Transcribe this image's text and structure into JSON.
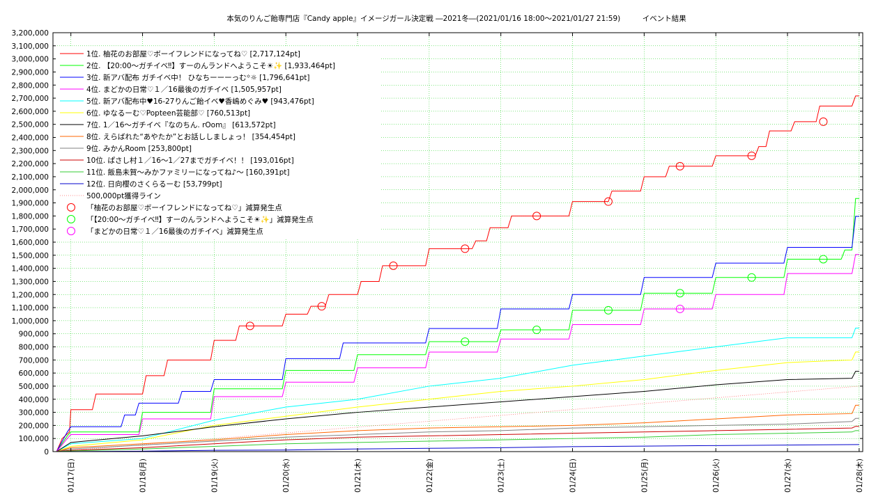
{
  "chart_data": {
    "type": "line",
    "title": "本気のりんご飴専門店『Candy apple』イメージガール決定戦 ―2021冬―(2021/01/16 18:00〜2021/01/27 21:59)　　　イベント結果",
    "xlabel": "",
    "ylabel": "",
    "x_ticks": [
      "01/17(日)",
      "01/18(月)",
      "01/19(火)",
      "01/20(水)",
      "01/21(木)",
      "01/22(金)",
      "01/23(土)",
      "01/24(日)",
      "01/25(月)",
      "01/26(火)",
      "01/27(水)",
      "01/28(木)"
    ],
    "xlim": [
      -0.25,
      11.05
    ],
    "ylim": [
      0,
      3200000
    ],
    "y_tick_step": 100000,
    "y_ticks": [
      "0",
      "100,000",
      "200,000",
      "300,000",
      "400,000",
      "500,000",
      "600,000",
      "700,000",
      "800,000",
      "900,000",
      "1,000,000",
      "1,100,000",
      "1,200,000",
      "1,300,000",
      "1,400,000",
      "1,500,000",
      "1,600,000",
      "1,700,000",
      "1,800,000",
      "1,900,000",
      "2,000,000",
      "2,100,000",
      "2,200,000",
      "2,300,000",
      "2,400,000",
      "2,500,000",
      "2,600,000",
      "2,700,000",
      "2,800,000",
      "2,900,000",
      "3,000,000",
      "3,100,000",
      "3,200,000"
    ],
    "grid": true,
    "legend_position": "top-left",
    "series": [
      {
        "name": "1位. 柚花のお部屋♡ボーイフレンドになってね♡ [2,717,124pt]",
        "color": "#ff0000",
        "points": [
          [
            -0.2,
            0
          ],
          [
            -0.12,
            100000
          ],
          [
            -0.02,
            150000
          ],
          [
            0,
            320000
          ],
          [
            0.3,
            320000
          ],
          [
            0.35,
            440000
          ],
          [
            1,
            440000
          ],
          [
            1.05,
            580000
          ],
          [
            1.3,
            580000
          ],
          [
            1.35,
            700000
          ],
          [
            1.95,
            700000
          ],
          [
            2,
            850000
          ],
          [
            2.3,
            850000
          ],
          [
            2.35,
            960000
          ],
          [
            2.95,
            960000
          ],
          [
            3,
            1050000
          ],
          [
            3.3,
            1050000
          ],
          [
            3.35,
            1110000
          ],
          [
            3.55,
            1110000
          ],
          [
            3.6,
            1200000
          ],
          [
            4,
            1200000
          ],
          [
            4.05,
            1300000
          ],
          [
            4.3,
            1300000
          ],
          [
            4.35,
            1420000
          ],
          [
            4.95,
            1420000
          ],
          [
            5,
            1550000
          ],
          [
            5.6,
            1550000
          ],
          [
            5.65,
            1610000
          ],
          [
            5.8,
            1610000
          ],
          [
            5.85,
            1710000
          ],
          [
            6.1,
            1710000
          ],
          [
            6.15,
            1800000
          ],
          [
            6.95,
            1800000
          ],
          [
            7,
            1910000
          ],
          [
            7.5,
            1910000
          ],
          [
            7.55,
            1990000
          ],
          [
            7.95,
            1990000
          ],
          [
            8,
            2100000
          ],
          [
            8.3,
            2100000
          ],
          [
            8.35,
            2180000
          ],
          [
            8.95,
            2180000
          ],
          [
            9,
            2260000
          ],
          [
            9.55,
            2260000
          ],
          [
            9.6,
            2330000
          ],
          [
            9.7,
            2330000
          ],
          [
            9.75,
            2450000
          ],
          [
            10.05,
            2450000
          ],
          [
            10.1,
            2520000
          ],
          [
            10.4,
            2520000
          ],
          [
            10.45,
            2640000
          ],
          [
            10.9,
            2640000
          ],
          [
            10.95,
            2717124
          ],
          [
            11,
            2717124
          ]
        ]
      },
      {
        "name": "2位. 【20:00〜ガチイベ‼︎】すーのんランドへようこそ☀︎✨ [1,933,464pt]",
        "color": "#00ff00",
        "points": [
          [
            -0.2,
            0
          ],
          [
            -0.05,
            120000
          ],
          [
            0,
            150000
          ],
          [
            0.95,
            150000
          ],
          [
            1,
            300000
          ],
          [
            1.95,
            300000
          ],
          [
            2,
            480000
          ],
          [
            2.95,
            480000
          ],
          [
            3,
            620000
          ],
          [
            3.95,
            620000
          ],
          [
            4,
            740000
          ],
          [
            4.95,
            740000
          ],
          [
            5,
            840000
          ],
          [
            5.95,
            840000
          ],
          [
            6,
            930000
          ],
          [
            6.95,
            930000
          ],
          [
            7,
            1080000
          ],
          [
            7.95,
            1080000
          ],
          [
            8,
            1210000
          ],
          [
            8.95,
            1210000
          ],
          [
            9,
            1330000
          ],
          [
            9.95,
            1330000
          ],
          [
            10,
            1470000
          ],
          [
            10.75,
            1470000
          ],
          [
            10.8,
            1540000
          ],
          [
            10.9,
            1540000
          ],
          [
            10.95,
            1933464
          ],
          [
            11,
            1933464
          ]
        ]
      },
      {
        "name": "3位. 新アバ配布 ガチイベ中！ ひなちーーーっむ꙳☼ [1,796,641pt]",
        "color": "#0000ff",
        "points": [
          [
            -0.2,
            0
          ],
          [
            -0.05,
            150000
          ],
          [
            0,
            190000
          ],
          [
            0.7,
            190000
          ],
          [
            0.75,
            280000
          ],
          [
            0.9,
            280000
          ],
          [
            0.95,
            370000
          ],
          [
            1.5,
            370000
          ],
          [
            1.55,
            460000
          ],
          [
            1.95,
            460000
          ],
          [
            2,
            550000
          ],
          [
            2.95,
            550000
          ],
          [
            3,
            710000
          ],
          [
            3.75,
            710000
          ],
          [
            3.8,
            830000
          ],
          [
            4.95,
            830000
          ],
          [
            5,
            940000
          ],
          [
            5.95,
            940000
          ],
          [
            6,
            1090000
          ],
          [
            6.95,
            1090000
          ],
          [
            7,
            1200000
          ],
          [
            7.95,
            1200000
          ],
          [
            8,
            1330000
          ],
          [
            8.95,
            1330000
          ],
          [
            9,
            1440000
          ],
          [
            9.95,
            1440000
          ],
          [
            10,
            1560000
          ],
          [
            10.9,
            1560000
          ],
          [
            10.95,
            1796641
          ],
          [
            11,
            1796641
          ]
        ]
      },
      {
        "name": "4位. まどかの日常♡１／16最後のガチイベ [1,505,957pt]",
        "color": "#ff00ff",
        "points": [
          [
            -0.2,
            0
          ],
          [
            -0.05,
            100000
          ],
          [
            0,
            130000
          ],
          [
            0.95,
            130000
          ],
          [
            1,
            250000
          ],
          [
            1.95,
            250000
          ],
          [
            2,
            420000
          ],
          [
            2.95,
            420000
          ],
          [
            3,
            530000
          ],
          [
            3.95,
            530000
          ],
          [
            4,
            640000
          ],
          [
            4.95,
            640000
          ],
          [
            5,
            760000
          ],
          [
            5.95,
            760000
          ],
          [
            6,
            860000
          ],
          [
            6.95,
            860000
          ],
          [
            7,
            970000
          ],
          [
            7.95,
            970000
          ],
          [
            8,
            1090000
          ],
          [
            8.95,
            1090000
          ],
          [
            9,
            1200000
          ],
          [
            9.95,
            1200000
          ],
          [
            10,
            1360000
          ],
          [
            10.9,
            1360000
          ],
          [
            10.95,
            1505957
          ],
          [
            11,
            1505957
          ]
        ]
      },
      {
        "name": "5位. 新アバ配布中♥16-27りんご飴イベ♥香嶋めぐみ♥ [943,476pt]",
        "color": "#00ffff",
        "points": [
          [
            -0.2,
            0
          ],
          [
            0,
            60000
          ],
          [
            1,
            100000
          ],
          [
            2,
            240000
          ],
          [
            3,
            340000
          ],
          [
            4,
            400000
          ],
          [
            5,
            500000
          ],
          [
            6,
            560000
          ],
          [
            7,
            660000
          ],
          [
            8,
            730000
          ],
          [
            9,
            800000
          ],
          [
            10,
            870000
          ],
          [
            10.9,
            870000
          ],
          [
            10.95,
            943476
          ],
          [
            11,
            943476
          ]
        ]
      },
      {
        "name": "6位. ゆなるーむ♡Popteen芸能部♡ [760,513pt]",
        "color": "#ffff00",
        "points": [
          [
            -0.2,
            0
          ],
          [
            0,
            40000
          ],
          [
            1,
            90000
          ],
          [
            2,
            200000
          ],
          [
            3,
            270000
          ],
          [
            4,
            340000
          ],
          [
            5,
            400000
          ],
          [
            6,
            460000
          ],
          [
            7,
            500000
          ],
          [
            8,
            550000
          ],
          [
            9,
            620000
          ],
          [
            10,
            680000
          ],
          [
            10.9,
            700000
          ],
          [
            10.95,
            760513
          ],
          [
            11,
            760513
          ]
        ]
      },
      {
        "name": "7位. 1／16〜ガチイベ『なのちん. rOom』 [613,572pt]",
        "color": "#000000",
        "points": [
          [
            -0.2,
            0
          ],
          [
            0,
            70000
          ],
          [
            1,
            120000
          ],
          [
            2,
            190000
          ],
          [
            3,
            250000
          ],
          [
            4,
            300000
          ],
          [
            5,
            340000
          ],
          [
            6,
            380000
          ],
          [
            7,
            420000
          ],
          [
            8,
            460000
          ],
          [
            9,
            510000
          ],
          [
            10,
            550000
          ],
          [
            10.9,
            560000
          ],
          [
            10.95,
            613572
          ],
          [
            11,
            613572
          ]
        ]
      },
      {
        "name": "8位. えらばれた“あやたか”とお話ししましょっ！ [354,454pt]",
        "color": "#ff6600",
        "points": [
          [
            -0.2,
            0
          ],
          [
            0,
            30000
          ],
          [
            1,
            60000
          ],
          [
            2,
            90000
          ],
          [
            3,
            130000
          ],
          [
            4,
            160000
          ],
          [
            5,
            180000
          ],
          [
            6,
            190000
          ],
          [
            7,
            200000
          ],
          [
            8,
            220000
          ],
          [
            9,
            250000
          ],
          [
            10,
            280000
          ],
          [
            10.9,
            290000
          ],
          [
            10.95,
            354454
          ],
          [
            11,
            354454
          ]
        ]
      },
      {
        "name": "9位. みかんRoom [253,800pt]",
        "color": "#808080",
        "points": [
          [
            -0.2,
            0
          ],
          [
            0,
            20000
          ],
          [
            1,
            50000
          ],
          [
            2,
            80000
          ],
          [
            3,
            110000
          ],
          [
            4,
            130000
          ],
          [
            5,
            150000
          ],
          [
            6,
            160000
          ],
          [
            7,
            180000
          ],
          [
            8,
            190000
          ],
          [
            9,
            200000
          ],
          [
            10,
            210000
          ],
          [
            10.9,
            230000
          ],
          [
            10.95,
            253800
          ],
          [
            11,
            253800
          ]
        ]
      },
      {
        "name": "10位. ぱさし村１／16〜1／27までガチイベ！！ [193,016pt]",
        "color": "#cc0000",
        "points": [
          [
            -0.2,
            0
          ],
          [
            0,
            10000
          ],
          [
            1,
            30000
          ],
          [
            2,
            60000
          ],
          [
            3,
            90000
          ],
          [
            4,
            110000
          ],
          [
            5,
            120000
          ],
          [
            6,
            130000
          ],
          [
            7,
            140000
          ],
          [
            8,
            150000
          ],
          [
            9,
            160000
          ],
          [
            10,
            170000
          ],
          [
            10.9,
            180000
          ],
          [
            10.95,
            193016
          ],
          [
            11,
            193016
          ]
        ]
      },
      {
        "name": "11位. 飯島未賀〜みかファミリーになってね♪〜 [160,391pt]",
        "color": "#33cc33",
        "points": [
          [
            -0.2,
            0
          ],
          [
            0,
            5000
          ],
          [
            1,
            20000
          ],
          [
            2,
            40000
          ],
          [
            3,
            60000
          ],
          [
            4,
            70000
          ],
          [
            5,
            80000
          ],
          [
            6,
            90000
          ],
          [
            7,
            100000
          ],
          [
            8,
            110000
          ],
          [
            9,
            130000
          ],
          [
            10,
            140000
          ],
          [
            10.9,
            150000
          ],
          [
            10.95,
            160391
          ],
          [
            11,
            160391
          ]
        ]
      },
      {
        "name": "12位. 日向櫻のさくらるーむ [53,799pt]",
        "color": "#0000cc",
        "points": [
          [
            -0.2,
            0
          ],
          [
            1,
            3000
          ],
          [
            2,
            10000
          ],
          [
            3,
            12000
          ],
          [
            4,
            20000
          ],
          [
            5,
            25000
          ],
          [
            6,
            30000
          ],
          [
            7,
            38000
          ],
          [
            8,
            42000
          ],
          [
            9,
            46000
          ],
          [
            10,
            50000
          ],
          [
            11,
            53799
          ]
        ]
      }
    ],
    "reference_line": {
      "name": "500,000pt獲得ライン",
      "color": "#ff6666",
      "points": [
        [
          -0.2,
          0
        ],
        [
          11,
          500000
        ]
      ]
    },
    "markers": [
      {
        "name": "「柚花のお部屋♡ボーイフレンドになってね♡」減算発生点",
        "color": "#ff0000",
        "points": [
          [
            2.5,
            960000
          ],
          [
            3.5,
            1110000
          ],
          [
            4.5,
            1420000
          ],
          [
            5.5,
            1550000
          ],
          [
            6.5,
            1800000
          ],
          [
            7.5,
            1910000
          ],
          [
            8.5,
            2180000
          ],
          [
            9.5,
            2260000
          ],
          [
            10.5,
            2520000
          ]
        ]
      },
      {
        "name": "「【20:00〜ガチイベ‼︎】すーのんランドへようこそ☀︎✨」減算発生点",
        "color": "#00ff00",
        "points": [
          [
            5.5,
            840000
          ],
          [
            6.5,
            930000
          ],
          [
            7.5,
            1080000
          ],
          [
            8.5,
            1210000
          ],
          [
            9.5,
            1330000
          ],
          [
            10.5,
            1470000
          ]
        ]
      },
      {
        "name": "「まどかの日常♡１／16最後のガチイベ」減算発生点",
        "color": "#ff00ff",
        "points": [
          [
            8.5,
            1090000
          ]
        ]
      }
    ]
  }
}
